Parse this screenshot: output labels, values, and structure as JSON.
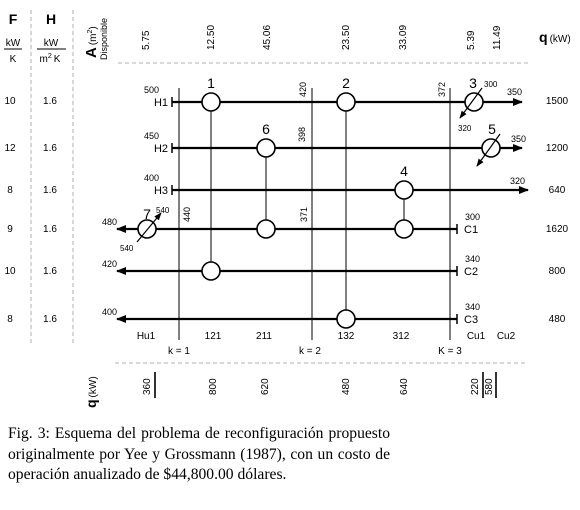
{
  "headers": {
    "f_symbol": "F",
    "f_unit_num": "kW",
    "f_unit_den": "K",
    "h_symbol": "H",
    "h_unit_num": "kW",
    "h_unit_den_base": "m",
    "h_unit_den_exp": "2",
    "h_unit_den_k": "K",
    "area_symbol": "A",
    "area_unit": "(m",
    "area_unit_exp": "2",
    "area_unit_close": ")",
    "disponible": "Disponible",
    "q_right_symbol": "q",
    "q_right_unit": "(kW)",
    "q_bottom_symbol": "q",
    "q_bottom_unit": "(kW)"
  },
  "areas": [
    "5.75",
    "12.50",
    "45.06",
    "23.50",
    "33.09",
    "5.39",
    "11.49"
  ],
  "streams": [
    {
      "label": "H1",
      "F": "10",
      "H": "1.6",
      "q": "1500",
      "t_in": "500",
      "t_out": "350"
    },
    {
      "label": "H2",
      "F": "12",
      "H": "1.6",
      "q": "1200",
      "t_in": "450",
      "t_out": "350"
    },
    {
      "label": "H3",
      "F": "8",
      "H": "1.6",
      "q": "640",
      "t_in": "400",
      "t_out": "320"
    },
    {
      "label": "C1",
      "F": "9",
      "H": "1.6",
      "q": "1620",
      "t_in": "300",
      "t_out": "480"
    },
    {
      "label": "C2",
      "F": "10",
      "H": "1.6",
      "q": "800",
      "t_in": "340",
      "t_out": "420"
    },
    {
      "label": "C3",
      "F": "8",
      "H": "1.6",
      "q": "480",
      "t_in": "340",
      "t_out": "400"
    }
  ],
  "exchangers": [
    "1",
    "2",
    "3",
    "4",
    "5",
    "6",
    "7"
  ],
  "interval_temps": [
    "420",
    "372",
    "398",
    "440",
    "371"
  ],
  "exchanger3_temps": [
    "300",
    "320"
  ],
  "exchanger5_temps": [
    "350"
  ],
  "exchanger7_temps": [
    "540",
    "540"
  ],
  "utility_labels": [
    "Hu1",
    "121",
    "211",
    "132",
    "312",
    "Cu1",
    "Cu2"
  ],
  "k_labels": [
    "k = 1",
    "k = 2",
    "K = 3"
  ],
  "q_bottom": [
    "360",
    "800",
    "620",
    "480",
    "640",
    "220",
    "580"
  ],
  "caption": "Fig. 3: Esquema del problema de reconfiguración propuesto originalmente por Yee y Grossmann (1987), con un costo de operación anualizado de $44,800.00 dólares."
}
